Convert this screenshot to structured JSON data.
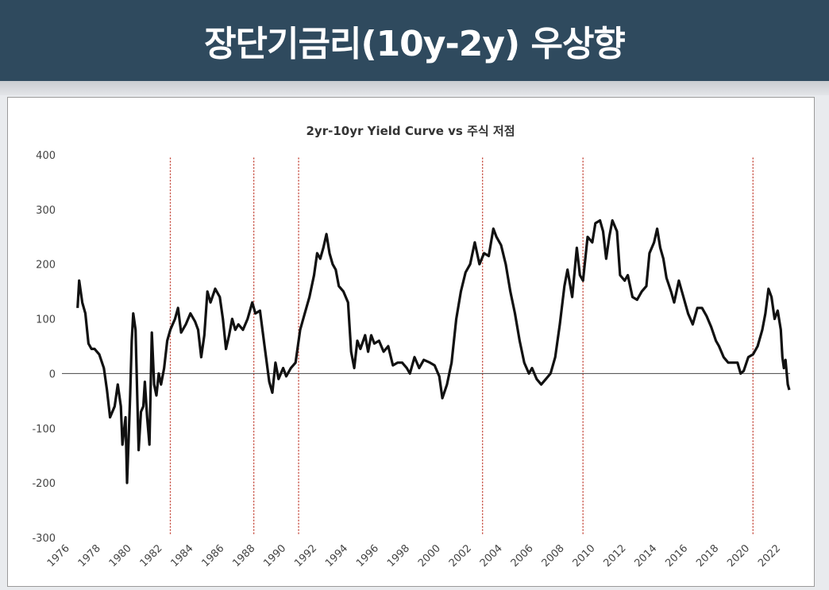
{
  "banner": {
    "title": "장단기금리(10y-2y) 우상향"
  },
  "colors": {
    "banner_bg": "#2f4a5e",
    "line": "#111111",
    "marker": "#c0392b"
  },
  "chart_data": {
    "type": "line",
    "title": "2yr-10yr Yield Curve vs 주식 저점",
    "xlabel": "",
    "ylabel": "",
    "ylim": [
      -300,
      400
    ],
    "xlim": [
      1976,
      2022.6
    ],
    "yticks": [
      400,
      300,
      200,
      100,
      0,
      -100,
      -200,
      -300
    ],
    "xticks": [
      "1976",
      "1978",
      "1980",
      "1982",
      "1984",
      "1986",
      "1988",
      "1990",
      "1992",
      "1994",
      "1996",
      "1998",
      "2000",
      "2002",
      "2004",
      "2006",
      "2008",
      "2010",
      "2012",
      "2014",
      "2016",
      "2018",
      "2020",
      "2022"
    ],
    "grid": false,
    "legend": "none",
    "vertical_markers": [
      1982.5,
      1987.9,
      1990.8,
      2002.7,
      2009.2,
      2020.2
    ],
    "series": [
      {
        "values": [
          [
            1976.5,
            120
          ],
          [
            1976.6,
            170
          ],
          [
            1976.8,
            130
          ],
          [
            1977.0,
            110
          ],
          [
            1977.2,
            55
          ],
          [
            1977.4,
            45
          ],
          [
            1977.6,
            45
          ],
          [
            1977.9,
            35
          ],
          [
            1978.2,
            10
          ],
          [
            1978.4,
            -30
          ],
          [
            1978.6,
            -80
          ],
          [
            1978.9,
            -60
          ],
          [
            1979.1,
            -20
          ],
          [
            1979.3,
            -60
          ],
          [
            1979.4,
            -130
          ],
          [
            1979.6,
            -80
          ],
          [
            1979.7,
            -200
          ],
          [
            1979.8,
            -120
          ],
          [
            1979.9,
            -40
          ],
          [
            1980.0,
            60
          ],
          [
            1980.1,
            110
          ],
          [
            1980.25,
            80
          ],
          [
            1980.45,
            -140
          ],
          [
            1980.6,
            -70
          ],
          [
            1980.75,
            -60
          ],
          [
            1980.85,
            -15
          ],
          [
            1981.0,
            -80
          ],
          [
            1981.15,
            -130
          ],
          [
            1981.3,
            75
          ],
          [
            1981.45,
            -20
          ],
          [
            1981.6,
            -40
          ],
          [
            1981.75,
            0
          ],
          [
            1981.9,
            -20
          ],
          [
            1982.1,
            10
          ],
          [
            1982.3,
            60
          ],
          [
            1982.5,
            80
          ],
          [
            1982.8,
            100
          ],
          [
            1983.0,
            120
          ],
          [
            1983.2,
            75
          ],
          [
            1983.5,
            90
          ],
          [
            1983.8,
            110
          ],
          [
            1984.1,
            95
          ],
          [
            1984.3,
            80
          ],
          [
            1984.5,
            30
          ],
          [
            1984.7,
            70
          ],
          [
            1984.9,
            150
          ],
          [
            1985.1,
            130
          ],
          [
            1985.4,
            155
          ],
          [
            1985.7,
            140
          ],
          [
            1985.9,
            100
          ],
          [
            1986.1,
            45
          ],
          [
            1986.3,
            70
          ],
          [
            1986.5,
            100
          ],
          [
            1986.7,
            80
          ],
          [
            1986.9,
            90
          ],
          [
            1987.2,
            80
          ],
          [
            1987.5,
            100
          ],
          [
            1987.8,
            130
          ],
          [
            1988.0,
            110
          ],
          [
            1988.3,
            115
          ],
          [
            1988.6,
            50
          ],
          [
            1988.9,
            -15
          ],
          [
            1989.1,
            -35
          ],
          [
            1989.3,
            20
          ],
          [
            1989.5,
            -10
          ],
          [
            1989.8,
            10
          ],
          [
            1990.0,
            -5
          ],
          [
            1990.3,
            10
          ],
          [
            1990.6,
            20
          ],
          [
            1990.9,
            80
          ],
          [
            1991.2,
            110
          ],
          [
            1991.5,
            140
          ],
          [
            1991.8,
            180
          ],
          [
            1992.0,
            220
          ],
          [
            1992.2,
            210
          ],
          [
            1992.4,
            230
          ],
          [
            1992.6,
            255
          ],
          [
            1992.8,
            220
          ],
          [
            1993.0,
            200
          ],
          [
            1993.2,
            190
          ],
          [
            1993.4,
            160
          ],
          [
            1993.7,
            150
          ],
          [
            1994.0,
            130
          ],
          [
            1994.2,
            40
          ],
          [
            1994.4,
            10
          ],
          [
            1994.6,
            60
          ],
          [
            1994.8,
            45
          ],
          [
            1995.1,
            70
          ],
          [
            1995.3,
            40
          ],
          [
            1995.5,
            70
          ],
          [
            1995.7,
            55
          ],
          [
            1996.0,
            60
          ],
          [
            1996.3,
            40
          ],
          [
            1996.6,
            50
          ],
          [
            1996.9,
            15
          ],
          [
            1997.2,
            20
          ],
          [
            1997.5,
            20
          ],
          [
            1997.8,
            10
          ],
          [
            1998.0,
            0
          ],
          [
            1998.3,
            30
          ],
          [
            1998.6,
            10
          ],
          [
            1998.9,
            25
          ],
          [
            1999.3,
            20
          ],
          [
            1999.6,
            15
          ],
          [
            1999.9,
            -5
          ],
          [
            2000.1,
            -45
          ],
          [
            2000.4,
            -20
          ],
          [
            2000.7,
            20
          ],
          [
            2001.0,
            100
          ],
          [
            2001.3,
            150
          ],
          [
            2001.6,
            185
          ],
          [
            2001.9,
            200
          ],
          [
            2002.2,
            240
          ],
          [
            2002.5,
            200
          ],
          [
            2002.8,
            220
          ],
          [
            2003.1,
            215
          ],
          [
            2003.4,
            265
          ],
          [
            2003.6,
            250
          ],
          [
            2003.9,
            235
          ],
          [
            2004.2,
            200
          ],
          [
            2004.5,
            150
          ],
          [
            2004.8,
            110
          ],
          [
            2005.1,
            60
          ],
          [
            2005.4,
            20
          ],
          [
            2005.7,
            0
          ],
          [
            2005.9,
            10
          ],
          [
            2006.2,
            -10
          ],
          [
            2006.5,
            -20
          ],
          [
            2006.8,
            -10
          ],
          [
            2007.1,
            0
          ],
          [
            2007.4,
            30
          ],
          [
            2007.7,
            90
          ],
          [
            2008.0,
            160
          ],
          [
            2008.2,
            190
          ],
          [
            2008.5,
            140
          ],
          [
            2008.8,
            230
          ],
          [
            2009.0,
            180
          ],
          [
            2009.2,
            170
          ],
          [
            2009.5,
            250
          ],
          [
            2009.8,
            240
          ],
          [
            2010.0,
            275
          ],
          [
            2010.3,
            280
          ],
          [
            2010.5,
            260
          ],
          [
            2010.7,
            210
          ],
          [
            2010.9,
            250
          ],
          [
            2011.1,
            280
          ],
          [
            2011.4,
            260
          ],
          [
            2011.6,
            180
          ],
          [
            2011.9,
            170
          ],
          [
            2012.1,
            180
          ],
          [
            2012.4,
            140
          ],
          [
            2012.7,
            135
          ],
          [
            2013.0,
            150
          ],
          [
            2013.3,
            160
          ],
          [
            2013.5,
            220
          ],
          [
            2013.8,
            240
          ],
          [
            2014.0,
            265
          ],
          [
            2014.2,
            230
          ],
          [
            2014.4,
            210
          ],
          [
            2014.6,
            175
          ],
          [
            2014.9,
            150
          ],
          [
            2015.1,
            130
          ],
          [
            2015.4,
            170
          ],
          [
            2015.7,
            140
          ],
          [
            2016.0,
            110
          ],
          [
            2016.3,
            90
          ],
          [
            2016.6,
            120
          ],
          [
            2016.9,
            120
          ],
          [
            2017.2,
            105
          ],
          [
            2017.5,
            85
          ],
          [
            2017.8,
            60
          ],
          [
            2018.0,
            50
          ],
          [
            2018.3,
            30
          ],
          [
            2018.6,
            20
          ],
          [
            2018.9,
            20
          ],
          [
            2019.2,
            20
          ],
          [
            2019.4,
            0
          ],
          [
            2019.6,
            5
          ],
          [
            2019.9,
            30
          ],
          [
            2020.2,
            35
          ],
          [
            2020.5,
            50
          ],
          [
            2020.8,
            80
          ],
          [
            2021.0,
            110
          ],
          [
            2021.2,
            155
          ],
          [
            2021.4,
            140
          ],
          [
            2021.6,
            100
          ],
          [
            2021.8,
            115
          ],
          [
            2022.0,
            80
          ],
          [
            2022.1,
            30
          ],
          [
            2022.2,
            10
          ],
          [
            2022.3,
            25
          ],
          [
            2022.45,
            -20
          ],
          [
            2022.55,
            -30
          ]
        ]
      }
    ]
  }
}
